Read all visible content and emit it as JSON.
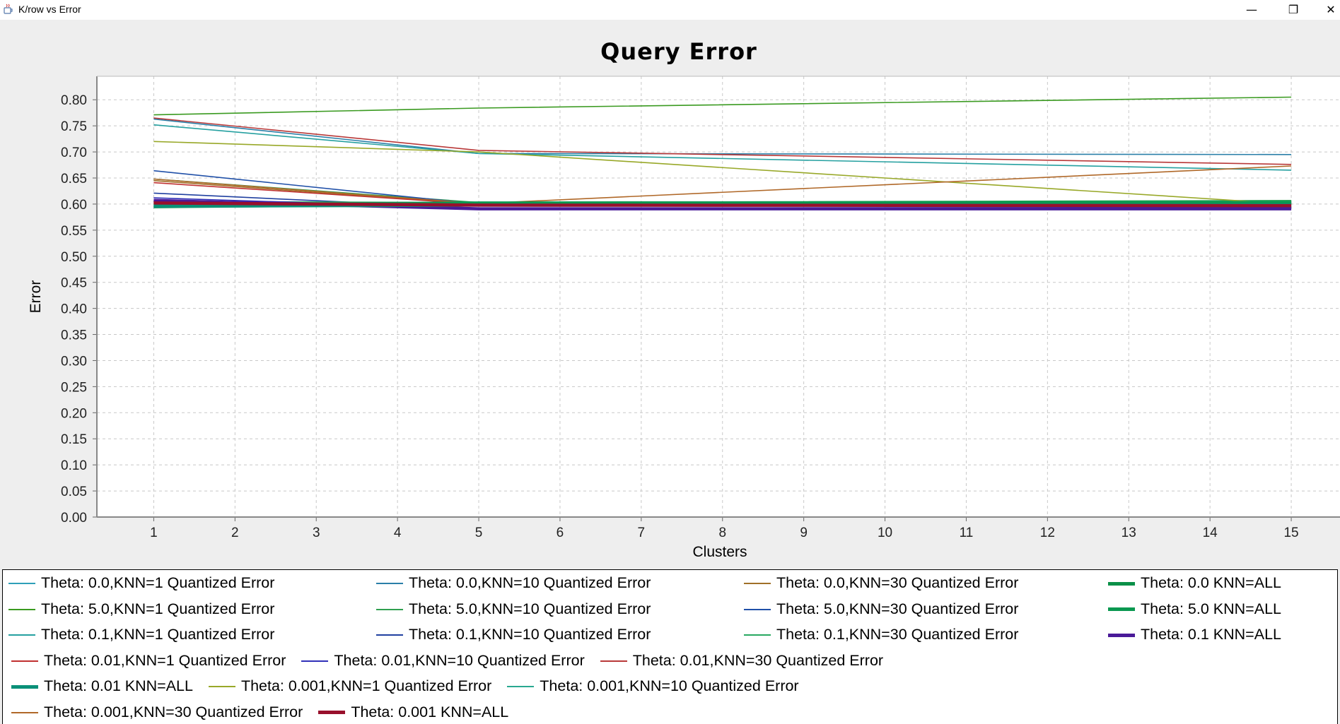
{
  "window": {
    "title": "K/row vs Error",
    "minimize_glyph": "—",
    "maximize_glyph": "❐",
    "close_glyph": "✕",
    "icon": "java-cup-icon"
  },
  "chart_data": {
    "type": "line",
    "title": "Query Error",
    "xlabel": "Clusters",
    "ylabel": "Error",
    "x": [
      1,
      5,
      15
    ],
    "xticks": [
      "1",
      "2",
      "3",
      "4",
      "5",
      "6",
      "7",
      "8",
      "9",
      "10",
      "11",
      "12",
      "13",
      "14",
      "15"
    ],
    "yticks": [
      "0.00",
      "0.05",
      "0.10",
      "0.15",
      "0.20",
      "0.25",
      "0.30",
      "0.35",
      "0.40",
      "0.45",
      "0.50",
      "0.55",
      "0.60",
      "0.65",
      "0.70",
      "0.75",
      "0.80"
    ],
    "xlim": [
      0.3,
      15.6
    ],
    "ylim": [
      0,
      0.845
    ],
    "grid": true,
    "legend_position": "bottom",
    "series": [
      {
        "name": "Theta: 0.0,KNN=1 Quantized Error",
        "color": "#2e9fb8",
        "thick": false,
        "values": [
          0.6,
          0.597,
          0.6
        ]
      },
      {
        "name": "Theta: 0.0,KNN=10 Quantized Error",
        "color": "#2a7fa8",
        "thick": false,
        "values": [
          0.763,
          0.697,
          0.695
        ]
      },
      {
        "name": "Theta: 0.0,KNN=30 Quantized Error",
        "color": "#a07028",
        "thick": false,
        "values": [
          0.645,
          0.6,
          0.603
        ]
      },
      {
        "name": "Theta: 0.0 KNN=ALL",
        "color": "#0a9048",
        "thick": true,
        "values": [
          0.595,
          0.6,
          0.6
        ]
      },
      {
        "name": "Theta: 5.0,KNN=1 Quantized Error",
        "color": "#3a9a20",
        "thick": false,
        "values": [
          0.771,
          0.784,
          0.805
        ]
      },
      {
        "name": "Theta: 5.0,KNN=10 Quantized Error",
        "color": "#30a050",
        "thick": false,
        "values": [
          0.648,
          0.603,
          0.607
        ]
      },
      {
        "name": "Theta: 5.0,KNN=30 Quantized Error",
        "color": "#2050a8",
        "thick": false,
        "values": [
          0.664,
          0.6,
          0.597
        ]
      },
      {
        "name": "Theta: 5.0 KNN=ALL",
        "color": "#0a9850",
        "thick": true,
        "values": [
          0.598,
          0.602,
          0.603
        ]
      },
      {
        "name": "Theta: 0.1,KNN=1 Quantized Error",
        "color": "#25a0a0",
        "thick": false,
        "values": [
          0.752,
          0.697,
          0.665
        ]
      },
      {
        "name": "Theta: 0.1,KNN=10 Quantized Error",
        "color": "#2040a0",
        "thick": false,
        "values": [
          0.621,
          0.592,
          0.593
        ]
      },
      {
        "name": "Theta: 0.1,KNN=30 Quantized Error",
        "color": "#28a860",
        "thick": false,
        "values": [
          0.605,
          0.603,
          0.606
        ]
      },
      {
        "name": "Theta: 0.1 KNN=ALL",
        "color": "#4a1a98",
        "thick": true,
        "values": [
          0.607,
          0.591,
          0.591
        ]
      },
      {
        "name": "Theta: 0.01,KNN=1 Quantized Error",
        "color": "#c03030",
        "thick": false,
        "values": [
          0.641,
          0.6,
          0.6
        ]
      },
      {
        "name": "Theta: 0.01,KNN=10 Quantized Error",
        "color": "#3030b8",
        "thick": false,
        "values": [
          0.612,
          0.592,
          0.594
        ]
      },
      {
        "name": "Theta: 0.01,KNN=30 Quantized Error",
        "color": "#b83838",
        "thick": false,
        "values": [
          0.765,
          0.703,
          0.676
        ]
      },
      {
        "name": "Theta: 0.01 KNN=ALL",
        "color": "#0a9078",
        "thick": true,
        "values": [
          0.596,
          0.598,
          0.598
        ]
      },
      {
        "name": "Theta: 0.001,KNN=1 Quantized Error",
        "color": "#98a828",
        "thick": false,
        "values": [
          0.72,
          0.7,
          0.6
        ]
      },
      {
        "name": "Theta: 0.001,KNN=10 Quantized Error",
        "color": "#28a890",
        "thick": false,
        "values": [
          0.6,
          0.6,
          0.601
        ]
      },
      {
        "name": "Theta: 0.001,KNN=30 Quantized Error",
        "color": "#b06828",
        "thick": false,
        "values": [
          0.648,
          0.601,
          0.673
        ]
      },
      {
        "name": "Theta: 0.001 KNN=ALL",
        "color": "#98102c",
        "thick": true,
        "values": [
          0.602,
          0.598,
          0.597
        ]
      }
    ]
  }
}
